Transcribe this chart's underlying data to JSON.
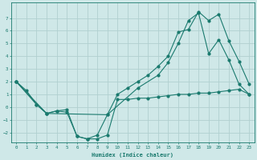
{
  "xlabel": "Humidex (Indice chaleur)",
  "background_color": "#cfe8e8",
  "grid_color": "#b0d0d0",
  "line_color": "#1a7a6e",
  "xlim": [
    -0.5,
    23.5
  ],
  "ylim": [
    -2.8,
    8.2
  ],
  "xticks": [
    0,
    1,
    2,
    3,
    4,
    5,
    6,
    7,
    8,
    9,
    10,
    11,
    12,
    13,
    14,
    15,
    16,
    17,
    18,
    19,
    20,
    21,
    22,
    23
  ],
  "yticks": [
    -2,
    -1,
    0,
    1,
    2,
    3,
    4,
    5,
    6,
    7
  ],
  "line1_x": [
    0,
    1,
    2,
    3,
    4,
    5,
    6,
    7,
    8,
    9,
    10,
    11,
    12,
    13,
    14,
    15,
    16,
    17,
    18,
    19,
    20,
    21,
    22,
    23
  ],
  "line1_y": [
    2.0,
    1.3,
    0.2,
    -0.5,
    -0.3,
    -0.4,
    -2.3,
    -2.5,
    -2.5,
    -2.2,
    0.6,
    0.6,
    0.7,
    0.7,
    0.8,
    0.9,
    1.0,
    1.0,
    1.1,
    1.1,
    1.2,
    1.3,
    1.4,
    1.0
  ],
  "line2_x": [
    0,
    2,
    3,
    4,
    5,
    6,
    7,
    8,
    9,
    10,
    11,
    12,
    13,
    14,
    15,
    16,
    17,
    18,
    19,
    20,
    21,
    22,
    23
  ],
  "line2_y": [
    2.0,
    0.2,
    -0.5,
    -0.3,
    -0.2,
    -2.3,
    -2.5,
    -2.2,
    -0.6,
    1.0,
    1.5,
    2.0,
    2.5,
    3.2,
    4.0,
    5.9,
    6.1,
    7.5,
    6.8,
    7.3,
    5.2,
    3.6,
    1.8
  ],
  "line3_x": [
    0,
    3,
    9,
    12,
    14,
    15,
    16,
    17,
    18,
    19,
    20,
    21,
    22,
    23
  ],
  "line3_y": [
    2.0,
    -0.5,
    -0.6,
    1.5,
    2.5,
    3.5,
    5.0,
    6.8,
    7.4,
    4.2,
    5.3,
    3.7,
    1.8,
    1.0
  ]
}
